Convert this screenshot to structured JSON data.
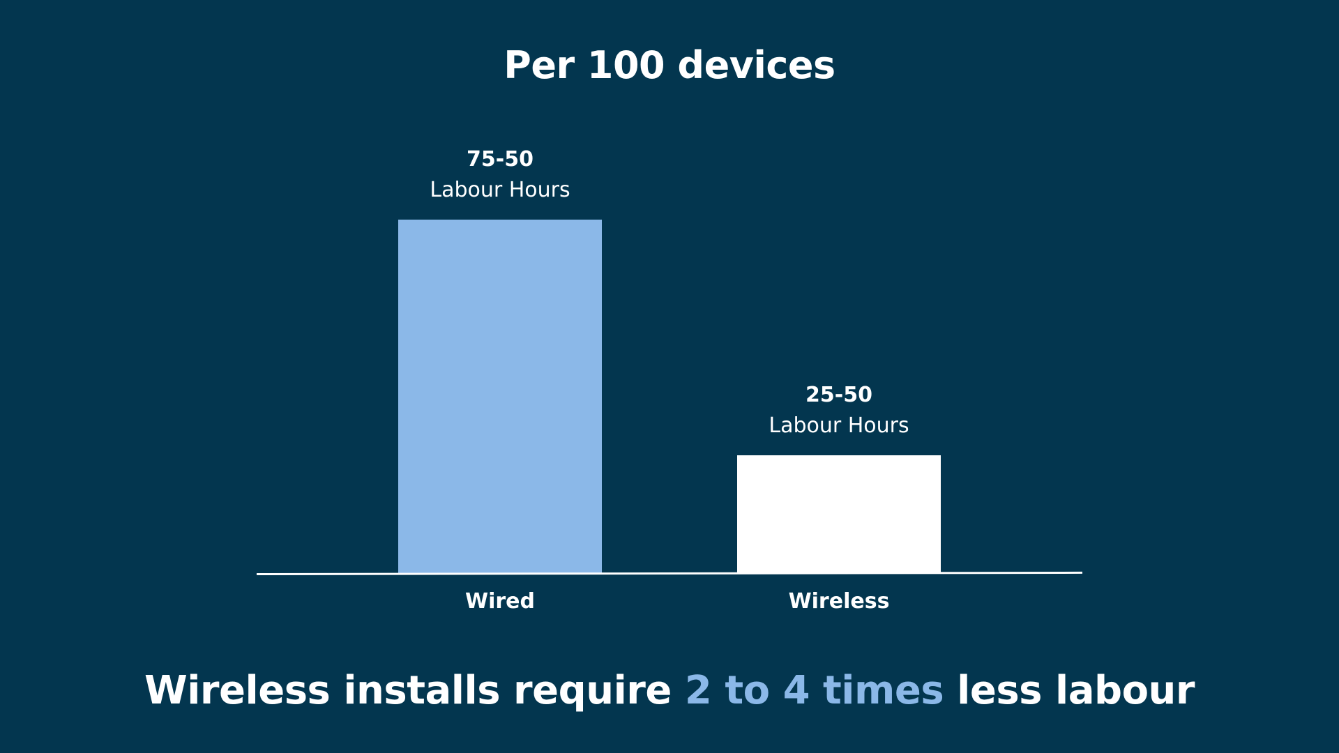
{
  "colors": {
    "background": "#03364f",
    "wired": "#8bb8e8",
    "wireless": "#ffffff",
    "highlight": "#8bb8e8"
  },
  "chart_data": {
    "type": "bar",
    "title": "Per 100 devices",
    "categories": [
      "Wired",
      "Wireless"
    ],
    "values": [
      75,
      25
    ],
    "value_labels": [
      "75-50",
      "25-50"
    ],
    "unit_label": "Labour Hours",
    "ylim": [
      0,
      75
    ],
    "grid": false,
    "legend": "none"
  },
  "headline": {
    "before": "Wireless installs require ",
    "highlight": "2 to 4 times",
    "after": " less labour"
  }
}
